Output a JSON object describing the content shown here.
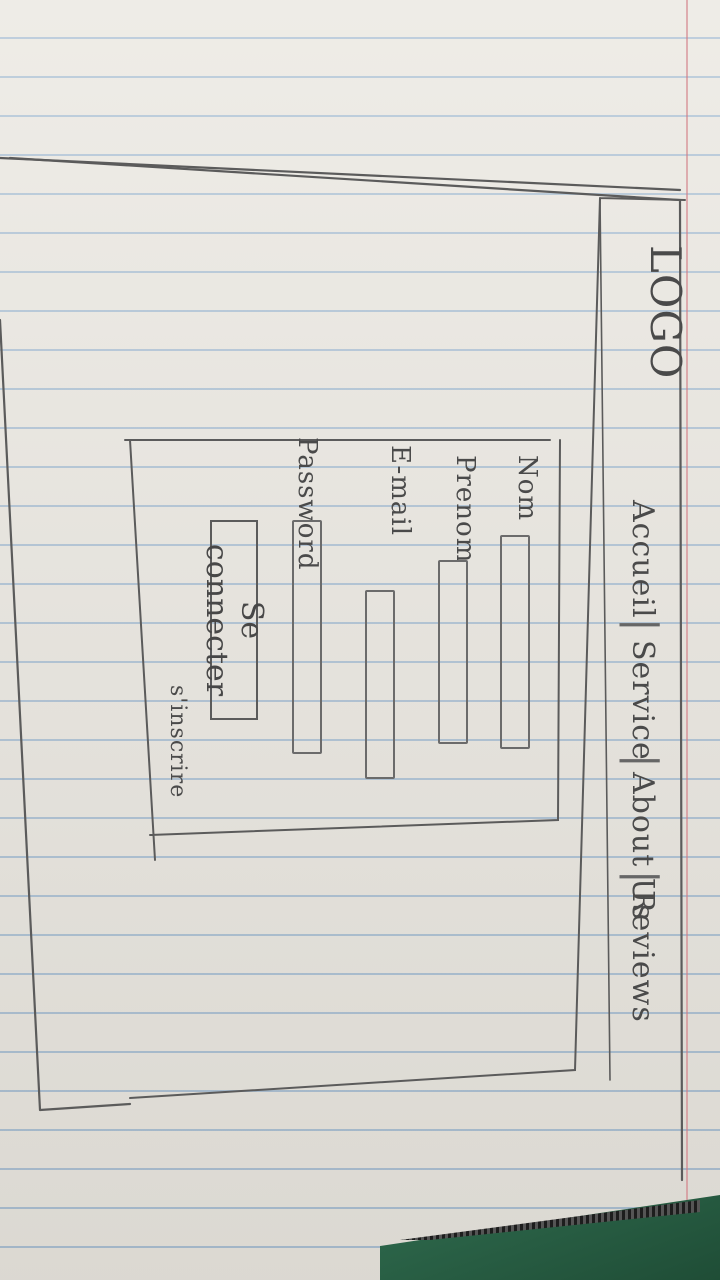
{
  "header": {
    "logo": "LOGO",
    "nav": [
      "Accueil",
      "Service",
      "About Us",
      "Reviews"
    ]
  },
  "form": {
    "fields": [
      {
        "label": "Nom"
      },
      {
        "label": "Prenom"
      },
      {
        "label": "E-mail"
      },
      {
        "label": "Password"
      }
    ],
    "submit_label": "Se connecter",
    "signup_link": "s'inscrire"
  },
  "colors": {
    "paper": "#e9e6df",
    "rule_lines": "#78a0c8",
    "pencil": "#5b5b5b",
    "desk": "#2f6b4e"
  }
}
